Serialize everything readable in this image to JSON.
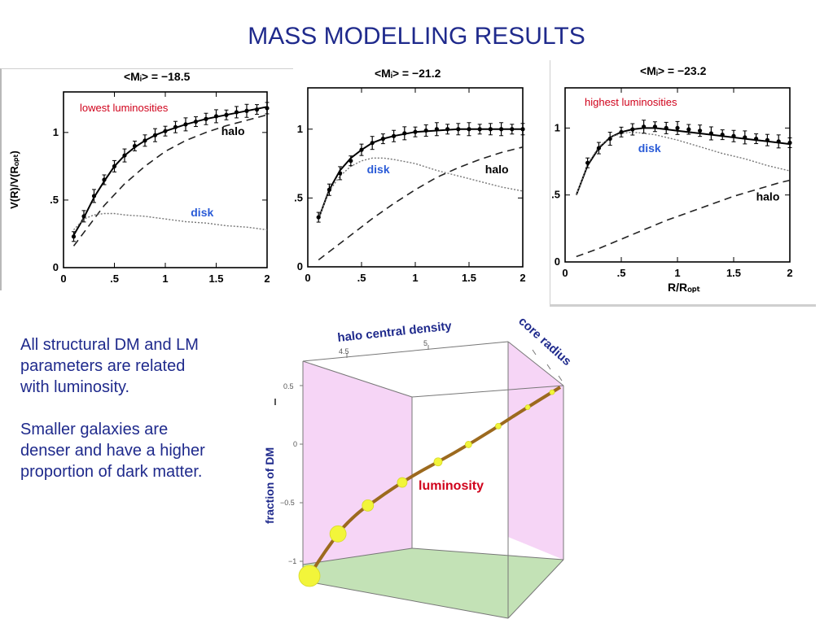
{
  "slide": {
    "title": "MASS MODELLING RESULTS",
    "paragraph1": "All structural  DM and LM\n parameters are related\nwith luminosity.",
    "paragraph2": "Smaller galaxies are\ndenser  and have a higher\nproportion of dark matter."
  },
  "colors": {
    "title_blue": "#1f2a8c",
    "red_label": "#d0021b",
    "disk_blue": "#2a5bd7",
    "cube_side_pink": "#f6d5f6",
    "cube_floor_green": "#c3e2b6",
    "curve_brown": "#9c6a1e",
    "marker_yellow": "#f2f53a"
  },
  "chart_data": [
    {
      "type": "line",
      "heading": "<Mᵢ> = −18.5",
      "annotation": "lowest luminosities",
      "ylabel": "V(R)/V(Rₒₚₜ)",
      "xlim": [
        0,
        2
      ],
      "ylim": [
        0,
        1.3
      ],
      "xticks": [
        "0",
        ".5",
        "1",
        "1.5",
        "2"
      ],
      "yticks": [
        "0",
        ".5",
        "1"
      ],
      "series": [
        {
          "name": "",
          "style": "solid",
          "x": [
            0.1,
            0.2,
            0.3,
            0.4,
            0.5,
            0.6,
            0.7,
            0.8,
            0.9,
            1.0,
            1.2,
            1.4,
            1.6,
            1.8,
            2.0
          ],
          "values": [
            0.24,
            0.37,
            0.52,
            0.64,
            0.75,
            0.83,
            0.89,
            0.94,
            0.98,
            1.01,
            1.06,
            1.1,
            1.13,
            1.16,
            1.19
          ]
        },
        {
          "name": "halo",
          "style": "dashed",
          "x": [
            0.1,
            0.2,
            0.4,
            0.6,
            0.8,
            1.0,
            1.2,
            1.4,
            1.6,
            1.8,
            2.0
          ],
          "values": [
            0.16,
            0.26,
            0.46,
            0.62,
            0.75,
            0.86,
            0.94,
            1.0,
            1.05,
            1.09,
            1.13
          ]
        },
        {
          "name": "disk",
          "style": "dotted",
          "x": [
            0.1,
            0.2,
            0.3,
            0.4,
            0.5,
            0.6,
            0.8,
            1.0,
            1.2,
            1.4,
            1.6,
            1.8,
            2.0
          ],
          "values": [
            0.28,
            0.36,
            0.39,
            0.4,
            0.4,
            0.39,
            0.38,
            0.36,
            0.34,
            0.33,
            0.31,
            0.3,
            0.28
          ]
        }
      ],
      "points": {
        "x": [
          0.1,
          0.2,
          0.3,
          0.4,
          0.5,
          0.6,
          0.7,
          0.8,
          0.9,
          1.0,
          1.1,
          1.2,
          1.3,
          1.4,
          1.5,
          1.6,
          1.7,
          1.8,
          1.9,
          2.0
        ],
        "values": [
          0.23,
          0.38,
          0.53,
          0.65,
          0.75,
          0.83,
          0.9,
          0.94,
          0.98,
          1.01,
          1.04,
          1.06,
          1.08,
          1.1,
          1.12,
          1.13,
          1.15,
          1.16,
          1.17,
          1.18
        ]
      },
      "labels": [
        {
          "text": "halo",
          "x": 1.55,
          "y": 0.98,
          "color": "#000000"
        },
        {
          "text": "disk",
          "x": 1.25,
          "y": 0.38,
          "color": "#2a5bd7"
        }
      ]
    },
    {
      "type": "line",
      "heading": "<Mᵢ> = −21.2",
      "annotation": "",
      "ylabel": "",
      "xlim": [
        0,
        2
      ],
      "ylim": [
        0,
        1.3
      ],
      "xticks": [
        "0",
        ".5",
        "1",
        "1.5",
        "2"
      ],
      "yticks": [
        "0",
        ".5",
        "1"
      ],
      "series": [
        {
          "name": "",
          "style": "solid",
          "x": [
            0.1,
            0.2,
            0.3,
            0.4,
            0.5,
            0.6,
            0.7,
            0.8,
            1.0,
            1.2,
            1.4,
            1.6,
            1.8,
            2.0
          ],
          "values": [
            0.35,
            0.56,
            0.7,
            0.79,
            0.85,
            0.9,
            0.93,
            0.95,
            0.98,
            0.99,
            1.0,
            1.0,
            1.0,
            1.0
          ]
        },
        {
          "name": "halo",
          "style": "dashed",
          "x": [
            0.1,
            0.2,
            0.4,
            0.6,
            0.8,
            1.0,
            1.2,
            1.4,
            1.6,
            1.8,
            2.0
          ],
          "values": [
            0.05,
            0.11,
            0.23,
            0.35,
            0.46,
            0.56,
            0.65,
            0.72,
            0.78,
            0.83,
            0.87
          ]
        },
        {
          "name": "disk",
          "style": "dotted",
          "x": [
            0.1,
            0.2,
            0.3,
            0.4,
            0.5,
            0.6,
            0.7,
            0.8,
            1.0,
            1.2,
            1.4,
            1.6,
            1.8,
            2.0
          ],
          "values": [
            0.35,
            0.55,
            0.66,
            0.73,
            0.77,
            0.79,
            0.79,
            0.78,
            0.75,
            0.7,
            0.66,
            0.62,
            0.58,
            0.55
          ]
        }
      ],
      "points": {
        "x": [
          0.1,
          0.2,
          0.3,
          0.4,
          0.5,
          0.6,
          0.7,
          0.8,
          0.9,
          1.0,
          1.1,
          1.2,
          1.3,
          1.4,
          1.5,
          1.6,
          1.7,
          1.8,
          1.9,
          2.0
        ],
        "values": [
          0.36,
          0.56,
          0.68,
          0.77,
          0.85,
          0.9,
          0.93,
          0.95,
          0.97,
          0.98,
          0.99,
          1.0,
          1.0,
          1.0,
          1.0,
          1.0,
          1.0,
          1.0,
          1.0,
          1.0
        ]
      },
      "labels": [
        {
          "text": "disk",
          "x": 0.55,
          "y": 0.68,
          "color": "#2a5bd7"
        },
        {
          "text": "halo",
          "x": 1.65,
          "y": 0.68,
          "color": "#000000"
        }
      ]
    },
    {
      "type": "line",
      "heading": "<Mᵢ> = −23.2",
      "annotation": "highest  luminosities",
      "ylabel": "",
      "xlabel": "R/Rₒₚₜ",
      "xlim": [
        0,
        2
      ],
      "ylim": [
        0,
        1.3
      ],
      "xticks": [
        "0",
        ".5",
        "1",
        "1.5",
        "2"
      ],
      "yticks": [
        "0",
        ".5",
        "1"
      ],
      "series": [
        {
          "name": "",
          "style": "solid",
          "x": [
            0.1,
            0.2,
            0.3,
            0.4,
            0.5,
            0.6,
            0.7,
            0.8,
            0.9,
            1.0,
            1.2,
            1.4,
            1.6,
            1.8,
            2.0
          ],
          "values": [
            0.5,
            0.72,
            0.85,
            0.93,
            0.97,
            0.99,
            1.0,
            1.0,
            0.99,
            0.98,
            0.96,
            0.94,
            0.92,
            0.9,
            0.88
          ]
        },
        {
          "name": "halo",
          "style": "dashed",
          "x": [
            0.1,
            0.3,
            0.5,
            0.7,
            0.9,
            1.1,
            1.3,
            1.5,
            1.7,
            1.9,
            2.0
          ],
          "values": [
            0.04,
            0.1,
            0.17,
            0.24,
            0.31,
            0.37,
            0.43,
            0.49,
            0.54,
            0.59,
            0.61
          ]
        },
        {
          "name": "disk",
          "style": "dotted",
          "x": [
            0.1,
            0.2,
            0.3,
            0.4,
            0.5,
            0.6,
            0.7,
            0.8,
            1.0,
            1.2,
            1.4,
            1.6,
            1.8,
            2.0
          ],
          "values": [
            0.5,
            0.73,
            0.86,
            0.93,
            0.96,
            0.97,
            0.96,
            0.95,
            0.91,
            0.86,
            0.81,
            0.77,
            0.72,
            0.68
          ]
        }
      ],
      "points": {
        "x": [
          0.2,
          0.3,
          0.4,
          0.5,
          0.6,
          0.7,
          0.8,
          0.9,
          1.0,
          1.1,
          1.2,
          1.3,
          1.4,
          1.5,
          1.6,
          1.7,
          1.8,
          1.9,
          2.0
        ],
        "values": [
          0.74,
          0.85,
          0.92,
          0.97,
          0.99,
          1.01,
          1.01,
          1.0,
          1.0,
          0.99,
          0.98,
          0.96,
          0.95,
          0.94,
          0.93,
          0.92,
          0.91,
          0.9,
          0.89
        ]
      },
      "labels": [
        {
          "text": "disk",
          "x": 0.65,
          "y": 0.82,
          "color": "#2a5bd7"
        },
        {
          "text": "halo",
          "x": 1.7,
          "y": 0.46,
          "color": "#000000"
        }
      ]
    },
    {
      "type": "scatter",
      "kind": "3d",
      "axis_labels": {
        "top": "halo central density",
        "right": "core radius",
        "left": "fraction of DM",
        "curve": "luminosity"
      },
      "top_ticks": [
        "4.5",
        "5"
      ],
      "left_ticks": [
        "0.5",
        "0",
        "−0.5",
        "−1"
      ],
      "curve_points": [
        {
          "size": 13
        },
        {
          "size": 10
        },
        {
          "size": 7
        },
        {
          "size": 6
        },
        {
          "size": 5
        },
        {
          "size": 4
        },
        {
          "size": 3.5
        },
        {
          "size": 3
        },
        {
          "size": 3
        }
      ]
    }
  ]
}
